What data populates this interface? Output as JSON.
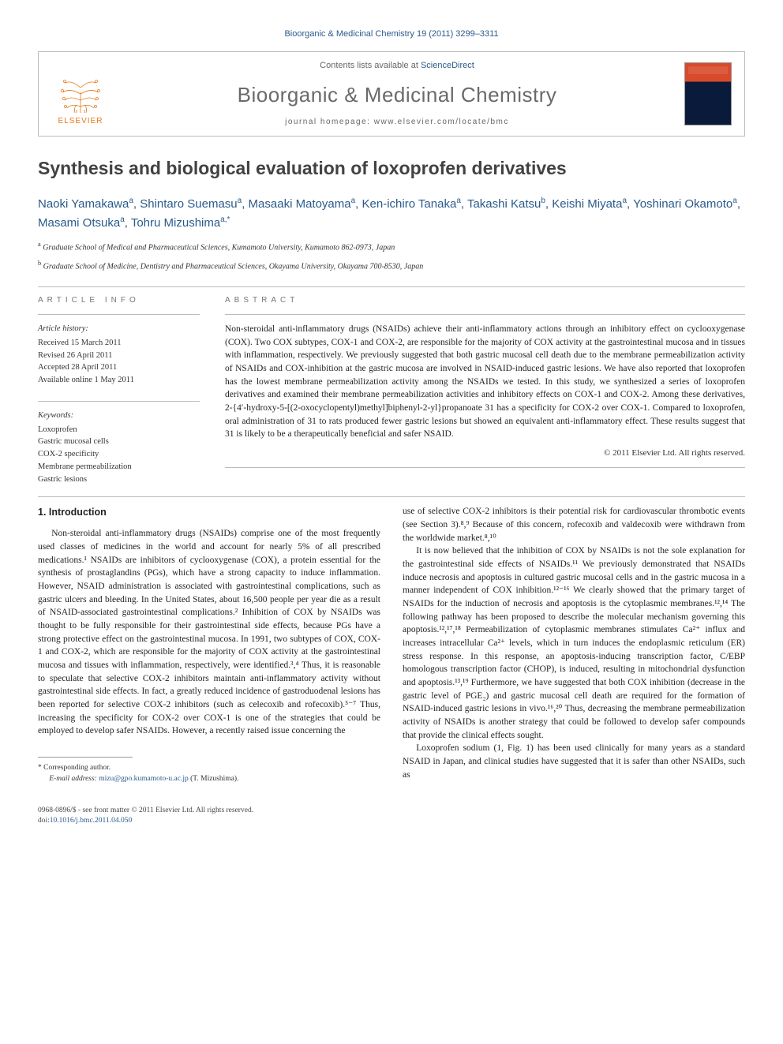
{
  "header": {
    "citation": "Bioorganic & Medicinal Chemistry 19 (2011) 3299–3311",
    "contents_prefix": "Contents lists available at ",
    "contents_link": "ScienceDirect",
    "journal": "Bioorganic & Medicinal Chemistry",
    "homepage_prefix": "journal homepage: ",
    "homepage": "www.elsevier.com/locate/bmc",
    "publisher": "ELSEVIER"
  },
  "article": {
    "title": "Synthesis and biological evaluation of loxoprofen derivatives",
    "authors_html": "Naoki Yamakawa<sup>a</sup>, Shintaro Suemasu<sup>a</sup>, Masaaki Matoyama<sup>a</sup>, Ken-ichiro Tanaka<sup>a</sup>, Takashi Katsu<sup>b</sup>, Keishi Miyata<sup>a</sup>, Yoshinari Okamoto<sup>a</sup>, Masami Otsuka<sup>a</sup>, Tohru Mizushima<sup>a,*</sup>",
    "affiliations": [
      "Graduate School of Medical and Pharmaceutical Sciences, Kumamoto University, Kumamoto 862-0973, Japan",
      "Graduate School of Medicine, Dentistry and Pharmaceutical Sciences, Okayama University, Okayama 700-8530, Japan"
    ],
    "aff_markers": [
      "a",
      "b"
    ]
  },
  "info": {
    "article_info_label": "ARTICLE INFO",
    "abstract_label": "ABSTRACT",
    "history_title": "Article history:",
    "history": [
      "Received 15 March 2011",
      "Revised 26 April 2011",
      "Accepted 28 April 2011",
      "Available online 1 May 2011"
    ],
    "keywords_title": "Keywords:",
    "keywords": [
      "Loxoprofen",
      "Gastric mucosal cells",
      "COX-2 specificity",
      "Membrane permeabilization",
      "Gastric lesions"
    ],
    "abstract": "Non-steroidal anti-inflammatory drugs (NSAIDs) achieve their anti-inflammatory actions through an inhibitory effect on cyclooxygenase (COX). Two COX subtypes, COX-1 and COX-2, are responsible for the majority of COX activity at the gastrointestinal mucosa and in tissues with inflammation, respectively. We previously suggested that both gastric mucosal cell death due to the membrane permeabilization activity of NSAIDs and COX-inhibition at the gastric mucosa are involved in NSAID-induced gastric lesions. We have also reported that loxoprofen has the lowest membrane permeabilization activity among the NSAIDs we tested. In this study, we synthesized a series of loxoprofen derivatives and examined their membrane permeabilization activities and inhibitory effects on COX-1 and COX-2. Among these derivatives, 2-{4′-hydroxy-5-[(2-oxocyclopentyl)methyl]biphenyl-2-yl}propanoate 31 has a specificity for COX-2 over COX-1. Compared to loxoprofen, oral administration of 31 to rats produced fewer gastric lesions but showed an equivalent anti-inflammatory effect. These results suggest that 31 is likely to be a therapeutically beneficial and safer NSAID.",
    "copyright": "© 2011 Elsevier Ltd. All rights reserved."
  },
  "body": {
    "section_title": "1. Introduction",
    "p1": "Non-steroidal anti-inflammatory drugs (NSAIDs) comprise one of the most frequently used classes of medicines in the world and account for nearly 5% of all prescribed medications.¹ NSAIDs are inhibitors of cyclooxygenase (COX), a protein essential for the synthesis of prostaglandins (PGs), which have a strong capacity to induce inflammation. However, NSAID administration is associated with gastrointestinal complications, such as gastric ulcers and bleeding. In the United States, about 16,500 people per year die as a result of NSAID-associated gastrointestinal complications.² Inhibition of COX by NSAIDs was thought to be fully responsible for their gastrointestinal side effects, because PGs have a strong protective effect on the gastrointestinal mucosa. In 1991, two subtypes of COX, COX-1 and COX-2, which are responsible for the majority of COX activity at the gastrointestinal mucosa and tissues with inflammation, respectively, were identified.³,⁴ Thus, it is reasonable to speculate that selective COX-2 inhibitors maintain anti-inflammatory activity without gastrointestinal side effects. In fact, a greatly reduced incidence of gastroduodenal lesions has been reported for selective COX-2 inhibitors (such as celecoxib and rofecoxib).⁵⁻⁷ Thus, increasing the specificity for COX-2 over COX-1 is one of the strategies that could be employed to develop safer NSAIDs. However, a recently raised issue concerning the",
    "p2": "use of selective COX-2 inhibitors is their potential risk for cardiovascular thrombotic events (see Section 3).⁸,⁹ Because of this concern, rofecoxib and valdecoxib were withdrawn from the worldwide market.⁸,¹⁰",
    "p3": "It is now believed that the inhibition of COX by NSAIDs is not the sole explanation for the gastrointestinal side effects of NSAIDs.¹¹ We previously demonstrated that NSAIDs induce necrosis and apoptosis in cultured gastric mucosal cells and in the gastric mucosa in a manner independent of COX inhibition.¹²⁻¹⁶ We clearly showed that the primary target of NSAIDs for the induction of necrosis and apoptosis is the cytoplasmic membranes.¹²,¹⁴ The following pathway has been proposed to describe the molecular mechanism governing this apoptosis.¹²,¹⁷,¹⁸ Permeabilization of cytoplasmic membranes stimulates Ca²⁺ influx and increases intracellular Ca²⁺ levels, which in turn induces the endoplasmic reticulum (ER) stress response. In this response, an apoptosis-inducing transcription factor, C/EBP homologous transcription factor (CHOP), is induced, resulting in mitochondrial dysfunction and apoptosis.¹³,¹⁹ Furthermore, we have suggested that both COX inhibition (decrease in the gastric level of PGE₂) and gastric mucosal cell death are required for the formation of NSAID-induced gastric lesions in vivo.¹⁶,²⁰ Thus, decreasing the membrane permeabilization activity of NSAIDs is another strategy that could be followed to develop safer compounds that provide the clinical effects sought.",
    "p4": "Loxoprofen sodium (1, Fig. 1) has been used clinically for many years as a standard NSAID in Japan, and clinical studies have suggested that it is safer than other NSAIDs, such as"
  },
  "footnote": {
    "corr": "* Corresponding author.",
    "email_label": "E-mail address:",
    "email": "mizu@gpo.kumamoto-u.ac.jp",
    "email_name": "(T. Mizushima)."
  },
  "footer": {
    "issn": "0968-0896/$ - see front matter © 2011 Elsevier Ltd. All rights reserved.",
    "doi_label": "doi:",
    "doi": "10.1016/j.bmc.2011.04.050"
  },
  "colors": {
    "link": "#2a5a8a",
    "publisher": "#e67817",
    "heading": "#424242"
  }
}
